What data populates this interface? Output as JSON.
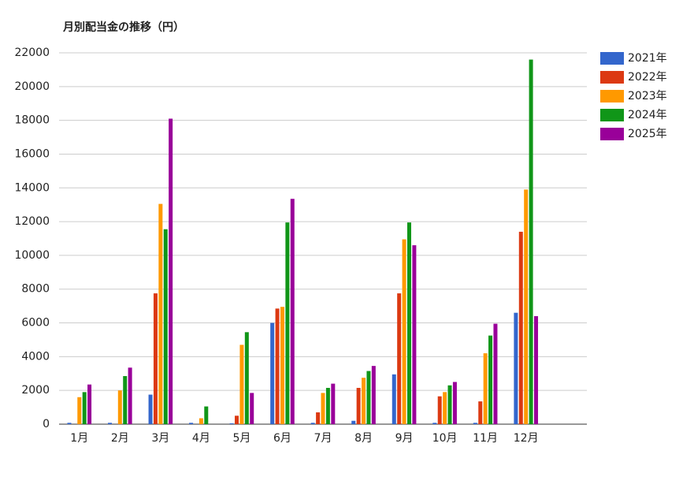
{
  "chart_data": {
    "type": "bar",
    "title": "月別配当金の推移（円）",
    "categories": [
      "1月",
      "2月",
      "3月",
      "4月",
      "5月",
      "6月",
      "7月",
      "8月",
      "9月",
      "10月",
      "11月",
      "12月",
      null
    ],
    "series": [
      {
        "name": "2021年",
        "color": "#3366cc",
        "values": [
          80,
          80,
          1750,
          80,
          50,
          6000,
          80,
          200,
          2950,
          80,
          80,
          6600,
          null
        ]
      },
      {
        "name": "2022年",
        "color": "#dc3912",
        "values": [
          0,
          0,
          7750,
          0,
          500,
          6850,
          700,
          2150,
          7750,
          1650,
          1350,
          11400,
          null
        ]
      },
      {
        "name": "2023年",
        "color": "#ff9900",
        "values": [
          1600,
          2000,
          13050,
          350,
          4700,
          6950,
          1850,
          2750,
          10950,
          1900,
          4200,
          13900,
          null
        ]
      },
      {
        "name": "2024年",
        "color": "#109618",
        "values": [
          1900,
          2850,
          11550,
          1050,
          5450,
          11950,
          2150,
          3150,
          11950,
          2300,
          5250,
          21600,
          null
        ]
      },
      {
        "name": "2025年",
        "color": "#990099",
        "values": [
          2350,
          3350,
          18100,
          0,
          1850,
          13350,
          2400,
          3450,
          10600,
          2500,
          5950,
          6400,
          null
        ]
      }
    ],
    "ylim": [
      0,
      22000
    ],
    "yticks": [
      0,
      2000,
      4000,
      6000,
      8000,
      10000,
      12000,
      14000,
      16000,
      18000,
      20000,
      22000
    ],
    "grid": true,
    "legend": "right"
  }
}
